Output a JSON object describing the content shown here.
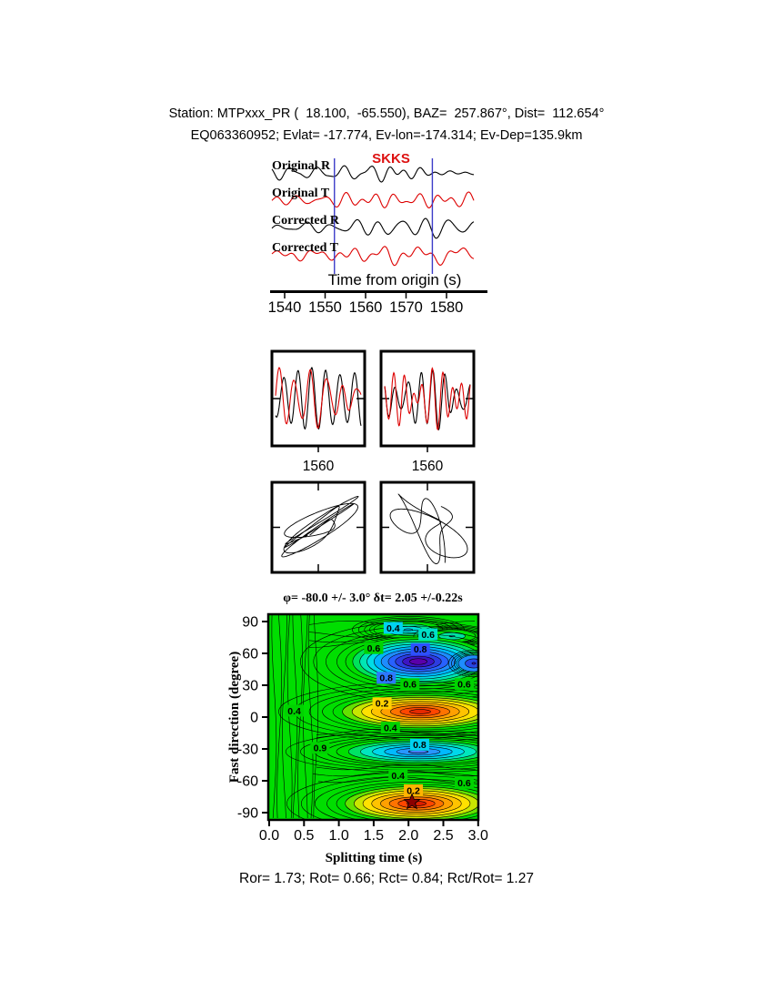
{
  "header": {
    "line1": "Station: MTPxxx_PR (  18.100,  -65.550), BAZ=  257.867°, Dist=  112.654°",
    "line2": "EQ063360952; Evlat= -17.774, Ev-lon=-174.314; Ev-Dep=135.9km"
  },
  "waveform_panel": {
    "phase_label": "SKKS",
    "xlabel": "Time from origin (s)",
    "xticks": [
      "1540",
      "1550",
      "1560",
      "1570",
      "1580"
    ],
    "window_times_s": [
      1552.3,
      1576.5
    ],
    "traces": [
      {
        "label": "Original R",
        "color": "#000000"
      },
      {
        "label": "Original T",
        "color": "#dd0000"
      },
      {
        "label": "Corrected R",
        "color": "#000000"
      },
      {
        "label": "Corrected T",
        "color": "#dd0000"
      }
    ]
  },
  "zoom_panels": [
    {
      "xtick_label": "1560"
    },
    {
      "xtick_label": "1560"
    }
  ],
  "contour": {
    "title": "φ= -80.0 +/- 3.0° δt= 2.05 +/-0.22s",
    "xlabel": "Splitting time (s)",
    "ylabel": "Fast direction (degree)",
    "xticks": [
      "0.0",
      "0.5",
      "1.0",
      "1.5",
      "2.0",
      "2.5",
      "3.0"
    ],
    "yticks": [
      "90",
      "60",
      "30",
      "0",
      "-30",
      "-60",
      "-90"
    ],
    "best_fit": {
      "dt_s": 2.05,
      "phi_deg": -80.0
    },
    "contour_labels": [
      {
        "text": "0.4",
        "t": 1.78,
        "phi": 84,
        "bg": "#00d2f0"
      },
      {
        "text": "0.6",
        "t": 2.28,
        "phi": 78,
        "bg": "#00e0c8"
      },
      {
        "text": "0.6",
        "t": 1.5,
        "phi": 65,
        "bg": "#00d200"
      },
      {
        "text": "0.8",
        "t": 2.17,
        "phi": 64,
        "bg": "#2d50ff"
      },
      {
        "text": "0.8",
        "t": 1.68,
        "phi": 37,
        "bg": "#2d78ff"
      },
      {
        "text": "0.6",
        "t": 2.02,
        "phi": 31,
        "bg": "#00d200"
      },
      {
        "text": "0.6",
        "t": 2.8,
        "phi": 31,
        "bg": "#00d200"
      },
      {
        "text": "0.2",
        "t": 1.62,
        "phi": 13,
        "bg": "#ffd200"
      },
      {
        "text": "0.4",
        "t": 0.36,
        "phi": 6,
        "bg": "#00d200"
      },
      {
        "text": "0.4",
        "t": 1.74,
        "phi": -10,
        "bg": "#00d200"
      },
      {
        "text": "0.9",
        "t": 0.73,
        "phi": -29,
        "bg": "#00d200"
      },
      {
        "text": "0.8",
        "t": 2.16,
        "phi": -26,
        "bg": "#00d2f0"
      },
      {
        "text": "0.4",
        "t": 1.85,
        "phi": -55,
        "bg": "#00d200"
      },
      {
        "text": "0.2",
        "t": 2.07,
        "phi": -69,
        "bg": "#ffb400"
      },
      {
        "text": "0.6",
        "t": 2.8,
        "phi": -62,
        "bg": "#00d200"
      }
    ]
  },
  "footer": {
    "text": "Ror= 1.73; Rot= 0.66; Rct= 0.84; Rct/Rot= 1.27",
    "values": {
      "Ror": 1.73,
      "Rot": 0.66,
      "Rct": 0.84,
      "Rct_over_Rot": 1.27
    }
  },
  "chart_data": [
    {
      "type": "line",
      "panel": "seismogram-traces",
      "series": [
        {
          "name": "Original R",
          "color": "#000000"
        },
        {
          "name": "Original T",
          "color": "#dd0000"
        },
        {
          "name": "Corrected R",
          "color": "#000000"
        },
        {
          "name": "Corrected T",
          "color": "#dd0000"
        }
      ],
      "xlabel": "Time from origin (s)",
      "xlim": [
        1537,
        1586
      ],
      "xticks": [
        1540,
        1550,
        1560,
        1570,
        1580
      ],
      "phase_marker": "SKKS",
      "analysis_window_s": [
        1552.3,
        1576.5
      ]
    },
    {
      "type": "line",
      "panel": "windowed-waveform-pairs",
      "subpanels": [
        {
          "xticks": [
            1560
          ]
        },
        {
          "xticks": [
            1560
          ]
        }
      ],
      "series_colors": [
        "#000000",
        "#dd0000"
      ]
    },
    {
      "type": "line",
      "panel": "particle-motion",
      "subpanels": 2
    },
    {
      "type": "heatmap",
      "panel": "splitting-error-surface",
      "title": "φ= -80.0 +/- 3.0° δt= 2.05 +/-0.22s",
      "xlabel": "Splitting time (s)",
      "ylabel": "Fast direction (degree)",
      "xlim": [
        0,
        3
      ],
      "ylim": [
        -90,
        90
      ],
      "xticks": [
        0.0,
        0.5,
        1.0,
        1.5,
        2.0,
        2.5,
        3.0
      ],
      "yticks": [
        90,
        60,
        30,
        0,
        -30,
        -60,
        -90
      ],
      "best_fit": {
        "phi_deg": -80.0,
        "phi_err_deg": 3.0,
        "dt_s": 2.05,
        "dt_err_s": 0.22
      },
      "features": [
        {
          "kind": "minimum",
          "color_zone": "blue-purple",
          "center": {
            "t": 2.2,
            "phi": 52
          }
        },
        {
          "kind": "maximum",
          "color_zone": "orange-red",
          "center": {
            "t": 2.1,
            "phi": 5
          }
        },
        {
          "kind": "minimum",
          "color_zone": "cyan-blue",
          "center": {
            "t": 2.1,
            "phi": -33
          }
        },
        {
          "kind": "maximum",
          "color_zone": "orange-red",
          "center": {
            "t": 2.05,
            "phi": -80
          },
          "marker": "star"
        }
      ],
      "contour_label_values": [
        0.2,
        0.4,
        0.6,
        0.8,
        0.9
      ]
    }
  ]
}
